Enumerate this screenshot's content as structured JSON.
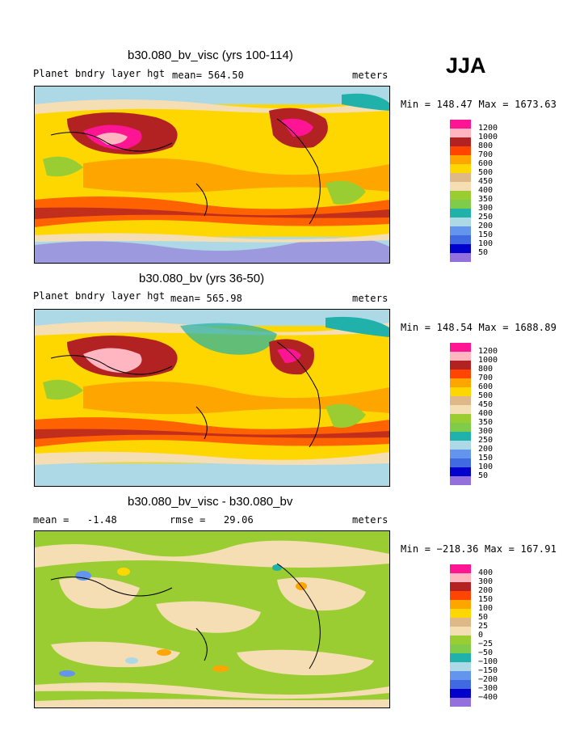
{
  "season": "JJA",
  "panels": [
    {
      "title": "b30.080_bv_visc (yrs 100-114)",
      "left_label": "Planet bndry layer hgt",
      "mid_label": "mean= 564.50",
      "right_label": "meters",
      "minmax": "Min = 148.47 Max = 1673.63"
    },
    {
      "title": "b30.080_bv (yrs 36-50)",
      "left_label": "Planet bndry layer hgt",
      "mid_label": "mean= 565.98",
      "right_label": "meters",
      "minmax": "Min = 148.54 Max = 1688.89"
    },
    {
      "title": "b30.080_bv_visc - b30.080_bv",
      "left_label": "mean =   -1.48",
      "mid_label": "rmse =   29.06",
      "right_label": "meters",
      "minmax": "Min = −218.36 Max = 167.91"
    }
  ],
  "legend_abs": {
    "labels": [
      "1200",
      "1000",
      "800",
      "700",
      "600",
      "500",
      "450",
      "400",
      "350",
      "300",
      "250",
      "200",
      "150",
      "100",
      "50"
    ],
    "colors": [
      "#ff1493",
      "#ffb6c1",
      "#b22222",
      "#ff4500",
      "#ffa500",
      "#ffd700",
      "#deb887",
      "#f5deb3",
      "#9acd32",
      "#7fcc4a",
      "#20b2aa",
      "#add8e6",
      "#6495ed",
      "#4169e1",
      "#0000cd",
      "#9370db"
    ]
  },
  "legend_diff": {
    "labels": [
      "400",
      "300",
      "200",
      "150",
      "100",
      "50",
      "25",
      "0",
      "−25",
      "−50",
      "−100",
      "−150",
      "−200",
      "−300",
      "−400"
    ],
    "colors": [
      "#ff1493",
      "#ffb6c1",
      "#b22222",
      "#ff4500",
      "#ffa500",
      "#ffd700",
      "#deb887",
      "#f5deb3",
      "#9acd32",
      "#7fcc4a",
      "#20b2aa",
      "#add8e6",
      "#6495ed",
      "#4169e1",
      "#0000cd",
      "#9370db"
    ]
  },
  "chart_data": [
    {
      "type": "heatmap",
      "title": "b30.080_bv_visc (yrs 100-114)",
      "variable": "Planet bndry layer hgt",
      "units": "meters",
      "mean": 564.5,
      "min": 148.47,
      "max": 1673.63,
      "contour_levels": [
        50,
        100,
        150,
        200,
        250,
        300,
        350,
        400,
        450,
        500,
        600,
        700,
        800,
        1000,
        1200
      ]
    },
    {
      "type": "heatmap",
      "title": "b30.080_bv (yrs 36-50)",
      "variable": "Planet bndry layer hgt",
      "units": "meters",
      "mean": 565.98,
      "min": 148.54,
      "max": 1688.89,
      "contour_levels": [
        50,
        100,
        150,
        200,
        250,
        300,
        350,
        400,
        450,
        500,
        600,
        700,
        800,
        1000,
        1200
      ]
    },
    {
      "type": "heatmap",
      "title": "b30.080_bv_visc - b30.080_bv",
      "units": "meters",
      "mean": -1.48,
      "rmse": 29.06,
      "min": -218.36,
      "max": 167.91,
      "contour_levels": [
        -400,
        -300,
        -200,
        -150,
        -100,
        -50,
        -25,
        0,
        25,
        50,
        100,
        150,
        200,
        300,
        400
      ]
    }
  ]
}
